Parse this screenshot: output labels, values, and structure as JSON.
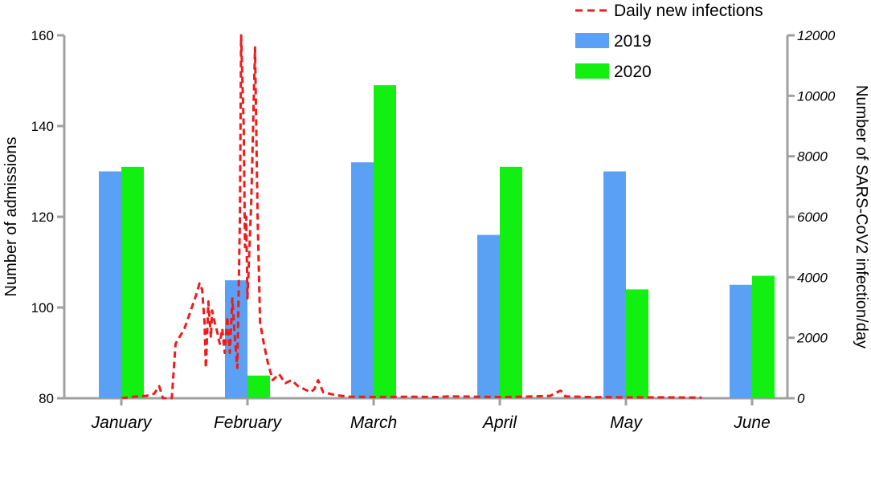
{
  "chart_data": {
    "type": "bar",
    "categories": [
      "January",
      "February",
      "March",
      "April",
      "May",
      "June"
    ],
    "series": [
      {
        "name": "2019",
        "values": [
          130,
          106,
          132,
          116,
          130,
          105
        ],
        "color": "#5aa0f5"
      },
      {
        "name": "2020",
        "values": [
          131,
          85,
          149,
          131,
          104,
          107
        ],
        "color": "#11f011"
      }
    ],
    "ylabel": "Number of admissions",
    "ylim": [
      80,
      160
    ],
    "yticks": [
      80,
      100,
      120,
      140,
      160
    ],
    "y2label": "Number of SARS-CoV2 infection/day",
    "y2lim": [
      0,
      12000
    ],
    "y2ticks": [
      0,
      2000,
      4000,
      6000,
      8000,
      10000,
      12000
    ],
    "line_series": {
      "name": "Daily new infections",
      "color": "#ee1c1c",
      "style": "dashed",
      "axis": "right",
      "x_unit": "month index (0 = January center, 1 = February center)",
      "points": [
        [
          0.0,
          0
        ],
        [
          0.1,
          50
        ],
        [
          0.2,
          80
        ],
        [
          0.26,
          150
        ],
        [
          0.3,
          400
        ],
        [
          0.33,
          0
        ],
        [
          0.4,
          0
        ],
        [
          0.43,
          1800
        ],
        [
          0.5,
          2300
        ],
        [
          0.55,
          2900
        ],
        [
          0.6,
          3500
        ],
        [
          0.62,
          3800
        ],
        [
          0.64,
          3600
        ],
        [
          0.66,
          2500
        ],
        [
          0.67,
          1000
        ],
        [
          0.69,
          3200
        ],
        [
          0.71,
          2000
        ],
        [
          0.72,
          2900
        ],
        [
          0.74,
          2500
        ],
        [
          0.76,
          2200
        ],
        [
          0.78,
          1800
        ],
        [
          0.8,
          2300
        ],
        [
          0.82,
          1500
        ],
        [
          0.84,
          2700
        ],
        [
          0.86,
          1500
        ],
        [
          0.88,
          3300
        ],
        [
          0.9,
          2000
        ],
        [
          0.92,
          1000
        ],
        [
          0.94,
          6000
        ],
        [
          0.95,
          12000
        ],
        [
          0.96,
          10500
        ],
        [
          0.97,
          9000
        ],
        [
          0.98,
          5000
        ],
        [
          0.99,
          6000
        ],
        [
          1.0,
          3300
        ],
        [
          1.03,
          6500
        ],
        [
          1.06,
          11600
        ],
        [
          1.08,
          6000
        ],
        [
          1.1,
          2500
        ],
        [
          1.13,
          1800
        ],
        [
          1.16,
          1200
        ],
        [
          1.2,
          600
        ],
        [
          1.25,
          800
        ],
        [
          1.3,
          500
        ],
        [
          1.35,
          600
        ],
        [
          1.4,
          400
        ],
        [
          1.45,
          300
        ],
        [
          1.5,
          200
        ],
        [
          1.53,
          300
        ],
        [
          1.56,
          600
        ],
        [
          1.6,
          200
        ],
        [
          1.7,
          100
        ],
        [
          1.8,
          50
        ],
        [
          2.0,
          40
        ],
        [
          2.3,
          50
        ],
        [
          2.5,
          40
        ],
        [
          2.6,
          60
        ],
        [
          2.8,
          50
        ],
        [
          3.0,
          40
        ],
        [
          3.2,
          50
        ],
        [
          3.4,
          80
        ],
        [
          3.48,
          250
        ],
        [
          3.5,
          200
        ],
        [
          3.52,
          60
        ],
        [
          3.7,
          40
        ],
        [
          4.0,
          30
        ],
        [
          4.3,
          30
        ],
        [
          4.6,
          20
        ]
      ]
    },
    "legend_position": "top-right",
    "grid": false
  }
}
